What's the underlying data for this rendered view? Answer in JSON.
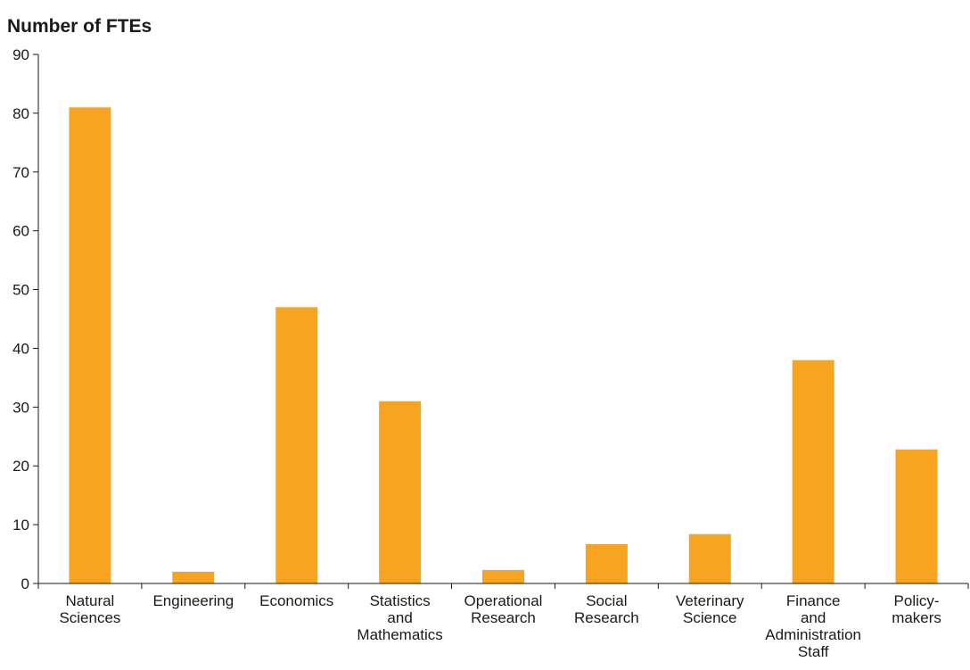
{
  "chart_data": {
    "type": "bar",
    "title": "",
    "ylabel": "Number of FTEs",
    "xlabel": "",
    "ylim": [
      0,
      90
    ],
    "yticks": [
      0,
      10,
      20,
      30,
      40,
      50,
      60,
      70,
      80,
      90
    ],
    "grid": false,
    "legend": "none",
    "bar_color": "#f7a520",
    "categories": [
      [
        "Natural",
        "Sciences"
      ],
      [
        "Engineering"
      ],
      [
        "Economics"
      ],
      [
        "Statistics",
        "and",
        "Mathematics"
      ],
      [
        "Operational",
        "Research"
      ],
      [
        "Social",
        "Research"
      ],
      [
        "Veterinary",
        "Science"
      ],
      [
        "Finance",
        "and",
        "Administration",
        "Staff"
      ],
      [
        "Policy-",
        "makers"
      ]
    ],
    "values": [
      81,
      2,
      47,
      31,
      2.3,
      6.7,
      8.4,
      38,
      22.8
    ]
  }
}
